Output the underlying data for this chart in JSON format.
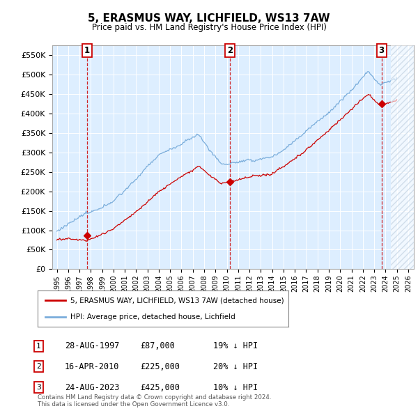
{
  "title": "5, ERASMUS WAY, LICHFIELD, WS13 7AW",
  "subtitle": "Price paid vs. HM Land Registry's House Price Index (HPI)",
  "hpi_color": "#7aaddb",
  "price_color": "#cc0000",
  "marker_color": "#cc0000",
  "bg_color": "#ddeeff",
  "ylim": [
    0,
    575000
  ],
  "yticks": [
    0,
    50000,
    100000,
    150000,
    200000,
    250000,
    300000,
    350000,
    400000,
    450000,
    500000,
    550000
  ],
  "xlim_start": 1994.6,
  "xlim_end": 2026.5,
  "sales": [
    {
      "date_num": 1997.66,
      "price": 87000,
      "label": "1"
    },
    {
      "date_num": 2010.29,
      "price": 225000,
      "label": "2"
    },
    {
      "date_num": 2023.65,
      "price": 425000,
      "label": "3"
    }
  ],
  "vline_dates": [
    1997.66,
    2010.29,
    2023.65
  ],
  "legend_line1": "5, ERASMUS WAY, LICHFIELD, WS13 7AW (detached house)",
  "legend_line2": "HPI: Average price, detached house, Lichfield",
  "table": [
    {
      "num": "1",
      "date": "28-AUG-1997",
      "price": "£87,000",
      "note": "19% ↓ HPI"
    },
    {
      "num": "2",
      "date": "16-APR-2010",
      "price": "£225,000",
      "note": "20% ↓ HPI"
    },
    {
      "num": "3",
      "date": "24-AUG-2023",
      "price": "£425,000",
      "note": "10% ↓ HPI"
    }
  ],
  "footnote": "Contains HM Land Registry data © Crown copyright and database right 2024.\nThis data is licensed under the Open Government Licence v3.0.",
  "hatch_start": 2024.5,
  "hatch_end": 2026.5
}
